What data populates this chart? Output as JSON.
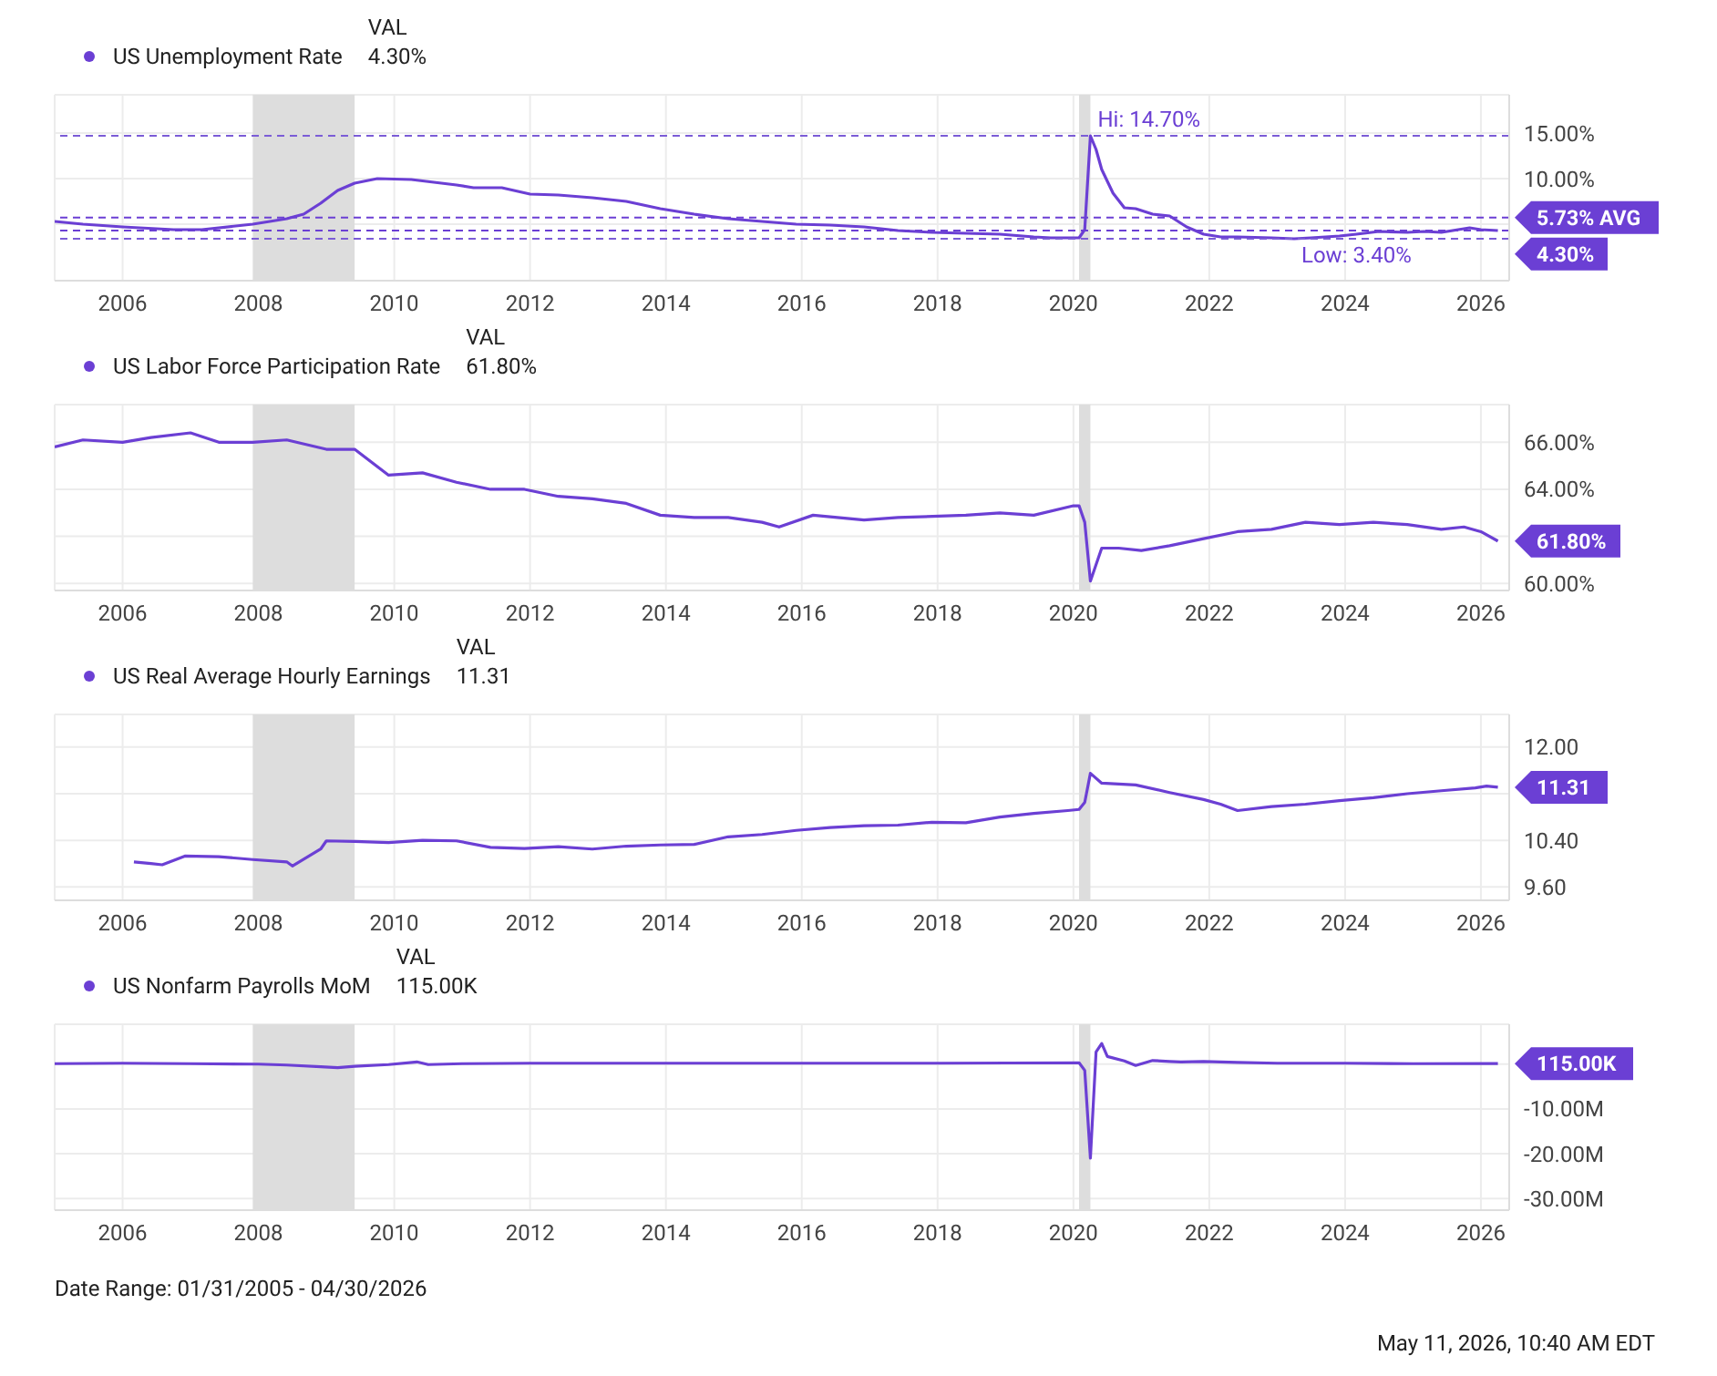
{
  "chart_data": [
    {
      "type": "line",
      "legend": "top left",
      "legend_title": "VAL",
      "grid": true,
      "xlim": [
        "2005-01",
        "2026-06"
      ],
      "xticks": [
        "2006",
        "2008",
        "2010",
        "2012",
        "2014",
        "2016",
        "2018",
        "2020",
        "2022",
        "2024",
        "2026"
      ],
      "ylim": [
        -1.2,
        19.2
      ],
      "yticks": [
        {
          "value": 5,
          "label": null
        },
        {
          "value": 10,
          "label": "10.00%"
        },
        {
          "value": 15,
          "label": "15.00%"
        }
      ],
      "bands": [
        {
          "axis": "x",
          "from": "2007-12",
          "to": "2009-06",
          "color": "#dddddd"
        },
        {
          "axis": "x",
          "from": "2020-02",
          "to": "2020-04",
          "color": "#dddddd"
        }
      ],
      "ref_lines": [
        {
          "axis": "y",
          "value": 14.7,
          "color": "#7b5cd6",
          "line_style": "dashed"
        },
        {
          "axis": "y",
          "value": 5.73,
          "label": "5.73% AVG",
          "color": "#6b3fd4",
          "line_style": "dashed"
        },
        {
          "axis": "y",
          "value": 4.3,
          "label": "4.30%",
          "color": "#6b3fd4",
          "line_style": "dashed"
        },
        {
          "axis": "y",
          "value": 3.4,
          "color": "#7b5cd6",
          "line_style": "dashed"
        }
      ],
      "annotations": [
        "4.30%",
        {
          "text": "Hi: 14.70%",
          "x": "2020-04",
          "y": 14.7
        },
        {
          "text": "Low: 3.40%",
          "x": "2023-04",
          "y": 3.4
        }
      ],
      "series": [
        {
          "name": "US Unemployment Rate",
          "color": "#6b3fd4",
          "x": [
            "2005-01",
            "2005-06",
            "2006-01",
            "2006-10",
            "2007-03",
            "2007-12",
            "2008-06",
            "2008-09",
            "2008-12",
            "2009-03",
            "2009-06",
            "2009-10",
            "2010-04",
            "2010-12",
            "2011-03",
            "2011-08",
            "2012-01",
            "2012-06",
            "2012-12",
            "2013-06",
            "2013-12",
            "2014-06",
            "2014-12",
            "2015-06",
            "2015-12",
            "2016-06",
            "2016-12",
            "2017-06",
            "2017-12",
            "2018-06",
            "2018-12",
            "2019-06",
            "2019-09",
            "2020-02",
            "2020-03",
            "2020-04",
            "2020-05",
            "2020-06",
            "2020-08",
            "2020-10",
            "2020-12",
            "2021-03",
            "2021-06",
            "2021-09",
            "2021-12",
            "2022-03",
            "2022-06",
            "2022-12",
            "2023-04",
            "2023-07",
            "2023-12",
            "2024-03",
            "2024-07",
            "2024-12",
            "2025-03",
            "2025-06",
            "2025-09",
            "2025-11",
            "2026-01",
            "2026-04"
          ],
          "values": [
            5.3,
            5.0,
            4.7,
            4.4,
            4.4,
            5.0,
            5.6,
            6.1,
            7.3,
            8.7,
            9.5,
            10.0,
            9.9,
            9.3,
            9.0,
            9.0,
            8.3,
            8.2,
            7.9,
            7.5,
            6.7,
            6.1,
            5.6,
            5.3,
            5.0,
            4.9,
            4.7,
            4.3,
            4.1,
            4.0,
            3.9,
            3.6,
            3.5,
            3.5,
            4.4,
            14.7,
            13.2,
            11.0,
            8.4,
            6.8,
            6.7,
            6.1,
            5.9,
            4.7,
            3.9,
            3.6,
            3.6,
            3.5,
            3.4,
            3.5,
            3.7,
            3.9,
            4.2,
            4.1,
            4.2,
            4.1,
            4.4,
            4.6,
            4.4,
            4.3
          ]
        }
      ]
    },
    {
      "type": "line",
      "legend": "top left",
      "legend_title": "VAL",
      "grid": true,
      "xlim": [
        "2005-01",
        "2026-06"
      ],
      "xticks": [
        "2006",
        "2008",
        "2010",
        "2012",
        "2014",
        "2016",
        "2018",
        "2020",
        "2022",
        "2024",
        "2026"
      ],
      "ylim": [
        59.7,
        67.6
      ],
      "yticks": [
        {
          "value": 60,
          "label": "60.00%"
        },
        {
          "value": 62,
          "label": null
        },
        {
          "value": 64,
          "label": "64.00%"
        },
        {
          "value": 66,
          "label": "66.00%"
        }
      ],
      "bands": [
        {
          "axis": "x",
          "from": "2007-12",
          "to": "2009-06",
          "color": "#dddddd"
        },
        {
          "axis": "x",
          "from": "2020-02",
          "to": "2020-04",
          "color": "#dddddd"
        }
      ],
      "annotations": [
        "61.80%",
        {
          "text": "61.80%",
          "x": "2026-04",
          "y": 61.8
        }
      ],
      "series": [
        {
          "name": "US Labor Force Participation Rate",
          "color": "#6b3fd4",
          "x": [
            "2005-01",
            "2005-06",
            "2006-01",
            "2006-06",
            "2007-01",
            "2007-06",
            "2007-12",
            "2008-06",
            "2009-01",
            "2009-06",
            "2009-12",
            "2010-06",
            "2010-12",
            "2011-06",
            "2011-12",
            "2012-06",
            "2012-12",
            "2013-06",
            "2013-12",
            "2014-06",
            "2014-12",
            "2015-06",
            "2015-09",
            "2016-03",
            "2016-12",
            "2017-06",
            "2018-06",
            "2018-12",
            "2019-06",
            "2020-01",
            "2020-02",
            "2020-03",
            "2020-04",
            "2020-06",
            "2020-09",
            "2021-01",
            "2021-06",
            "2021-12",
            "2022-06",
            "2022-12",
            "2023-06",
            "2023-12",
            "2024-06",
            "2024-12",
            "2025-06",
            "2025-10",
            "2026-01",
            "2026-04"
          ],
          "values": [
            65.8,
            66.1,
            66.0,
            66.2,
            66.4,
            66.0,
            66.0,
            66.1,
            65.7,
            65.7,
            64.6,
            64.7,
            64.3,
            64.0,
            64.0,
            63.7,
            63.6,
            63.4,
            62.9,
            62.8,
            62.8,
            62.6,
            62.4,
            62.9,
            62.7,
            62.8,
            62.9,
            63.0,
            62.9,
            63.3,
            63.3,
            62.6,
            60.1,
            61.5,
            61.5,
            61.4,
            61.6,
            61.9,
            62.2,
            62.3,
            62.6,
            62.5,
            62.6,
            62.5,
            62.3,
            62.4,
            62.2,
            61.8
          ]
        }
      ]
    },
    {
      "type": "line",
      "legend": "top left",
      "legend_title": "VAL",
      "grid": true,
      "xlim": [
        "2005-01",
        "2026-06"
      ],
      "xticks": [
        "2006",
        "2008",
        "2010",
        "2012",
        "2014",
        "2016",
        "2018",
        "2020",
        "2022",
        "2024",
        "2026"
      ],
      "ylim": [
        9.37,
        12.56
      ],
      "yticks": [
        {
          "value": 9.6,
          "label": "9.60"
        },
        {
          "value": 10.4,
          "label": "10.40"
        },
        {
          "value": 11.2,
          "label": null
        },
        {
          "value": 12,
          "label": "12.00"
        }
      ],
      "bands": [
        {
          "axis": "x",
          "from": "2007-12",
          "to": "2009-06",
          "color": "#dddddd"
        },
        {
          "axis": "x",
          "from": "2020-02",
          "to": "2020-04",
          "color": "#dddddd"
        }
      ],
      "annotations": [
        "11.31",
        {
          "text": "11.31",
          "x": "2026-04",
          "y": 11.31
        }
      ],
      "series": [
        {
          "name": "US Real Average Hourly Earnings",
          "color": "#6b3fd4",
          "x": [
            "2006-03",
            "2006-06",
            "2006-08",
            "2006-12",
            "2007-06",
            "2007-12",
            "2008-06",
            "2008-07",
            "2008-12",
            "2009-01",
            "2009-06",
            "2009-12",
            "2010-06",
            "2010-12",
            "2011-06",
            "2011-12",
            "2012-06",
            "2012-12",
            "2013-06",
            "2013-12",
            "2014-06",
            "2014-12",
            "2015-06",
            "2015-12",
            "2016-06",
            "2016-12",
            "2017-06",
            "2017-12",
            "2018-06",
            "2018-12",
            "2019-06",
            "2019-12",
            "2020-02",
            "2020-03",
            "2020-04",
            "2020-06",
            "2020-12",
            "2021-06",
            "2021-12",
            "2022-03",
            "2022-06",
            "2022-12",
            "2023-06",
            "2023-12",
            "2024-06",
            "2024-12",
            "2025-06",
            "2025-12",
            "2026-02",
            "2026-04"
          ],
          "values": [
            10.03,
            10.0,
            9.98,
            10.13,
            10.12,
            10.07,
            10.03,
            9.96,
            10.25,
            10.39,
            10.38,
            10.36,
            10.4,
            10.39,
            10.28,
            10.26,
            10.29,
            10.25,
            10.3,
            10.32,
            10.33,
            10.46,
            10.5,
            10.57,
            10.62,
            10.65,
            10.66,
            10.71,
            10.7,
            10.8,
            10.86,
            10.91,
            10.93,
            11.05,
            11.55,
            11.38,
            11.35,
            11.22,
            11.1,
            11.02,
            10.91,
            10.98,
            11.02,
            11.08,
            11.13,
            11.2,
            11.25,
            11.3,
            11.33,
            11.31
          ]
        }
      ]
    },
    {
      "type": "line",
      "legend": "top left",
      "legend_title": "VAL",
      "grid": true,
      "xlim": [
        "2005-01",
        "2026-06"
      ],
      "xticks": [
        "2006",
        "2008",
        "2010",
        "2012",
        "2014",
        "2016",
        "2018",
        "2020",
        "2022",
        "2024",
        "2026"
      ],
      "ylim": [
        -32.6,
        8.9
      ],
      "yticks": [
        {
          "value": -30,
          "label": "-30.00M"
        },
        {
          "value": -20,
          "label": "-20.00M"
        },
        {
          "value": -10,
          "label": "-10.00M"
        },
        {
          "value": 0,
          "label": null
        }
      ],
      "bands": [
        {
          "axis": "x",
          "from": "2007-12",
          "to": "2009-06",
          "color": "#dddddd"
        },
        {
          "axis": "x",
          "from": "2020-02",
          "to": "2020-04",
          "color": "#dddddd"
        }
      ],
      "annotations": [
        "115.00K",
        {
          "text": "115.00K",
          "x": "2026-04",
          "y": 0.115
        },
        "Date Range: 01/31/2005 - 04/30/2026",
        "May 11, 2026, 10:40 AM EDT"
      ],
      "series": [
        {
          "name": "US Nonfarm Payrolls MoM",
          "color": "#6b3fd4",
          "x": [
            "2005-01",
            "2006-01",
            "2007-01",
            "2008-01",
            "2008-06",
            "2008-12",
            "2009-03",
            "2009-06",
            "2009-12",
            "2010-05",
            "2010-07",
            "2011-01",
            "2012-01",
            "2014-01",
            "2016-01",
            "2018-01",
            "2020-02",
            "2020-03",
            "2020-04",
            "2020-05",
            "2020-06",
            "2020-07",
            "2020-10",
            "2020-12",
            "2021-03",
            "2021-06",
            "2021-08",
            "2021-12",
            "2022-06",
            "2023-01",
            "2024-01",
            "2025-01",
            "2026-04"
          ],
          "values": [
            0.1,
            0.2,
            0.1,
            0.0,
            -0.2,
            -0.6,
            -0.8,
            -0.5,
            -0.1,
            0.5,
            -0.1,
            0.1,
            0.2,
            0.2,
            0.2,
            0.2,
            0.3,
            -1.4,
            -21,
            2.7,
            4.6,
            1.7,
            0.7,
            -0.3,
            0.8,
            0.6,
            0.5,
            0.6,
            0.4,
            0.2,
            0.2,
            0.1,
            0.115
          ]
        }
      ]
    }
  ]
}
